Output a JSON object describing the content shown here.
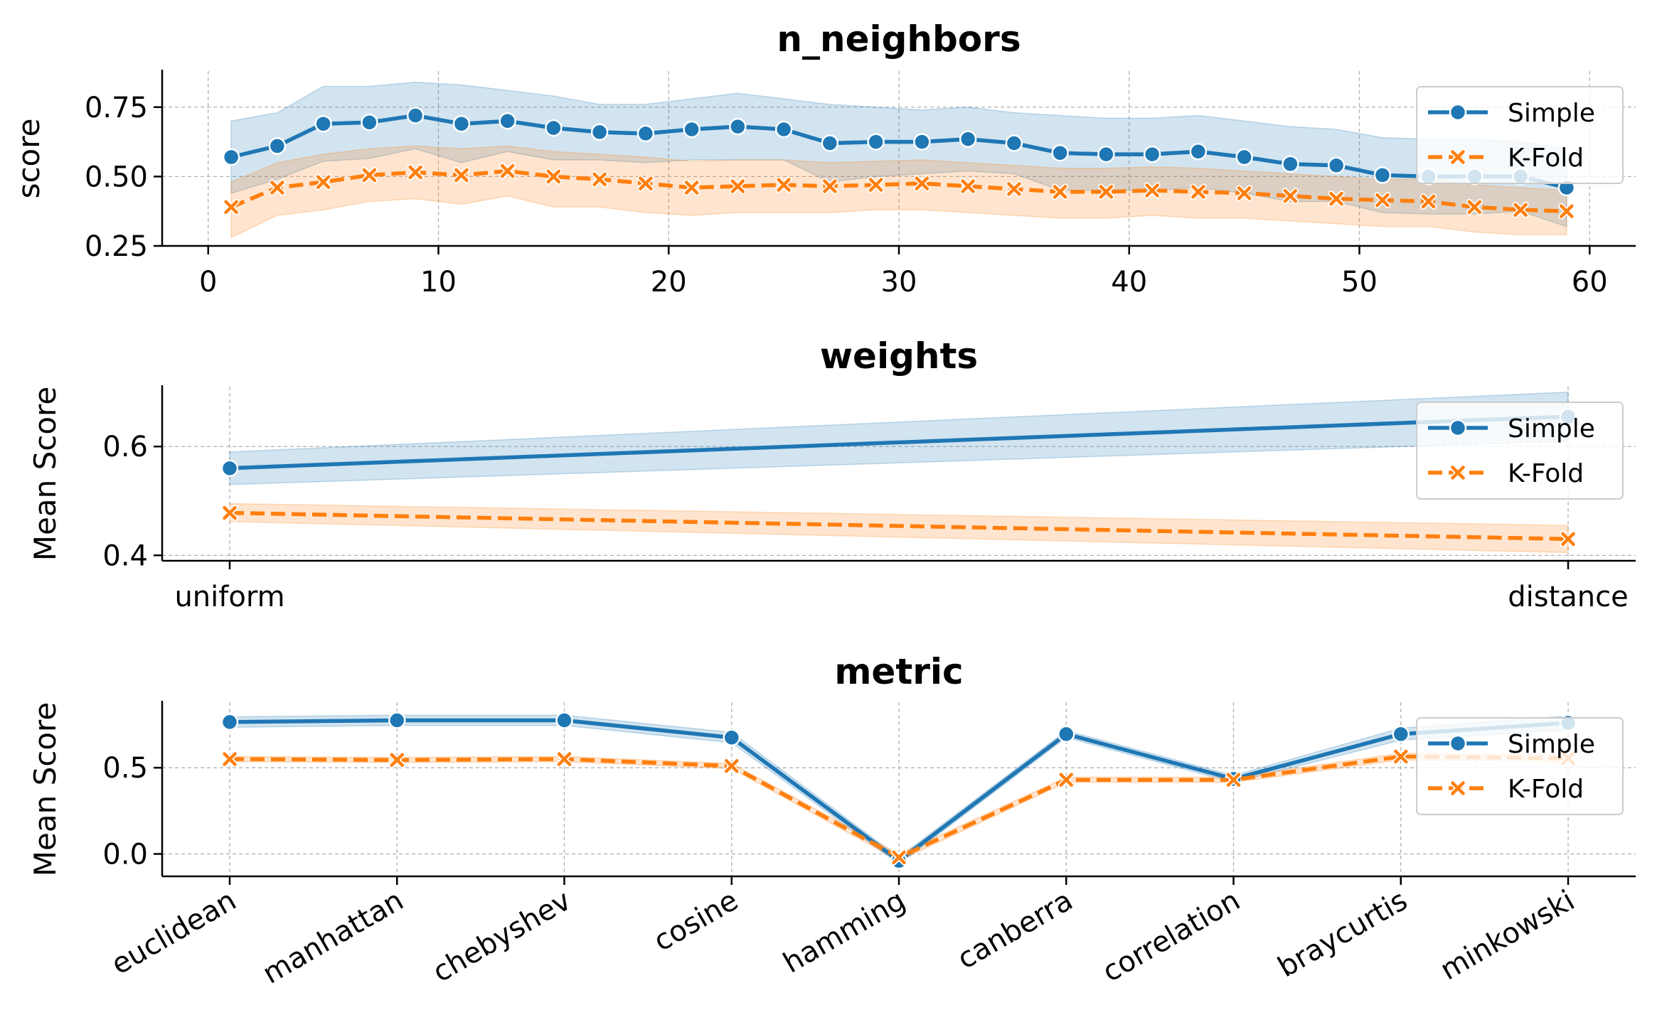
{
  "chart_data": [
    {
      "type": "line",
      "title": "n_neighbors",
      "xlabel": "",
      "ylabel": "score",
      "xlim": [
        -2,
        62
      ],
      "ylim": [
        0.25,
        0.88
      ],
      "xticks": [
        0,
        10,
        20,
        30,
        40,
        50,
        60
      ],
      "yticks": [
        0.25,
        0.5,
        0.75
      ],
      "ytick_labels": [
        "0.25",
        "0.50",
        "0.75"
      ],
      "grid": true,
      "legend_position": "upper right",
      "x": [
        1,
        3,
        5,
        7,
        9,
        11,
        13,
        15,
        17,
        19,
        21,
        23,
        25,
        27,
        29,
        31,
        33,
        35,
        37,
        39,
        41,
        43,
        45,
        47,
        49,
        51,
        53,
        55,
        57,
        59
      ],
      "series": [
        {
          "name": "Simple",
          "color": "#1f77b4",
          "marker": "circle",
          "values": [
            0.57,
            0.61,
            0.69,
            0.695,
            0.72,
            0.69,
            0.7,
            0.675,
            0.66,
            0.655,
            0.67,
            0.68,
            0.67,
            0.62,
            0.625,
            0.625,
            0.635,
            0.62,
            0.585,
            0.58,
            0.58,
            0.59,
            0.57,
            0.545,
            0.54,
            0.505,
            0.5,
            0.5,
            0.5,
            0.46
          ],
          "upper": [
            0.7,
            0.73,
            0.825,
            0.825,
            0.84,
            0.83,
            0.81,
            0.79,
            0.76,
            0.76,
            0.78,
            0.8,
            0.78,
            0.76,
            0.75,
            0.74,
            0.75,
            0.73,
            0.72,
            0.71,
            0.71,
            0.72,
            0.7,
            0.68,
            0.67,
            0.64,
            0.635,
            0.635,
            0.625,
            0.6
          ],
          "lower": [
            0.44,
            0.49,
            0.555,
            0.565,
            0.6,
            0.55,
            0.59,
            0.56,
            0.56,
            0.55,
            0.56,
            0.56,
            0.56,
            0.48,
            0.5,
            0.51,
            0.52,
            0.51,
            0.45,
            0.45,
            0.45,
            0.46,
            0.44,
            0.41,
            0.41,
            0.37,
            0.365,
            0.365,
            0.375,
            0.32
          ]
        },
        {
          "name": "K-Fold",
          "color": "#ff7f0e",
          "marker": "x",
          "values": [
            0.39,
            0.46,
            0.48,
            0.505,
            0.515,
            0.505,
            0.52,
            0.5,
            0.49,
            0.475,
            0.46,
            0.465,
            0.47,
            0.465,
            0.47,
            0.475,
            0.465,
            0.455,
            0.445,
            0.445,
            0.45,
            0.445,
            0.44,
            0.43,
            0.42,
            0.415,
            0.41,
            0.39,
            0.38,
            0.375
          ],
          "upper": [
            0.48,
            0.55,
            0.58,
            0.6,
            0.61,
            0.6,
            0.61,
            0.59,
            0.58,
            0.57,
            0.555,
            0.56,
            0.56,
            0.55,
            0.555,
            0.56,
            0.55,
            0.54,
            0.53,
            0.53,
            0.535,
            0.53,
            0.52,
            0.51,
            0.5,
            0.49,
            0.49,
            0.47,
            0.46,
            0.45
          ],
          "lower": [
            0.28,
            0.36,
            0.38,
            0.41,
            0.42,
            0.4,
            0.43,
            0.39,
            0.39,
            0.37,
            0.36,
            0.37,
            0.37,
            0.37,
            0.38,
            0.38,
            0.37,
            0.36,
            0.35,
            0.35,
            0.36,
            0.35,
            0.35,
            0.34,
            0.33,
            0.32,
            0.32,
            0.3,
            0.29,
            0.29
          ]
        }
      ]
    },
    {
      "type": "line",
      "title": "weights",
      "xlabel": "",
      "ylabel": "Mean Score",
      "categories": [
        "uniform",
        "distance"
      ],
      "ylim": [
        0.39,
        0.71
      ],
      "yticks": [
        0.4,
        0.6
      ],
      "ytick_labels": [
        "0.4",
        "0.6"
      ],
      "grid": true,
      "legend_position": "upper right",
      "series": [
        {
          "name": "Simple",
          "color": "#1f77b4",
          "marker": "circle",
          "values": [
            0.56,
            0.655
          ],
          "upper": [
            0.59,
            0.7
          ],
          "lower": [
            0.53,
            0.61
          ]
        },
        {
          "name": "K-Fold",
          "color": "#ff7f0e",
          "marker": "x",
          "values": [
            0.478,
            0.43
          ],
          "upper": [
            0.495,
            0.455
          ],
          "lower": [
            0.462,
            0.405
          ]
        }
      ]
    },
    {
      "type": "line",
      "title": "metric",
      "xlabel": "",
      "ylabel": "Mean Score",
      "categories": [
        "euclidean",
        "manhattan",
        "chebyshev",
        "cosine",
        "hamming",
        "canberra",
        "correlation",
        "braycurtis",
        "minkowski"
      ],
      "ylim": [
        -0.13,
        0.88
      ],
      "yticks": [
        0.0,
        0.5
      ],
      "ytick_labels": [
        "0.0",
        "0.5"
      ],
      "grid": true,
      "legend_position": "upper right",
      "series": [
        {
          "name": "Simple",
          "color": "#1f77b4",
          "marker": "circle",
          "values": [
            0.765,
            0.775,
            0.775,
            0.675,
            -0.04,
            0.695,
            0.435,
            0.695,
            0.76
          ],
          "upper": [
            0.795,
            0.805,
            0.805,
            0.705,
            -0.02,
            0.715,
            0.455,
            0.73,
            0.8
          ],
          "lower": [
            0.735,
            0.745,
            0.745,
            0.645,
            -0.06,
            0.675,
            0.415,
            0.66,
            0.72
          ]
        },
        {
          "name": "K-Fold",
          "color": "#ff7f0e",
          "marker": "x",
          "values": [
            0.55,
            0.545,
            0.55,
            0.51,
            -0.02,
            0.43,
            0.43,
            0.565,
            0.555
          ],
          "upper": [
            0.565,
            0.56,
            0.565,
            0.525,
            0.0,
            0.445,
            0.445,
            0.585,
            0.575
          ],
          "lower": [
            0.535,
            0.53,
            0.535,
            0.495,
            -0.04,
            0.415,
            0.415,
            0.545,
            0.535
          ]
        }
      ]
    }
  ]
}
